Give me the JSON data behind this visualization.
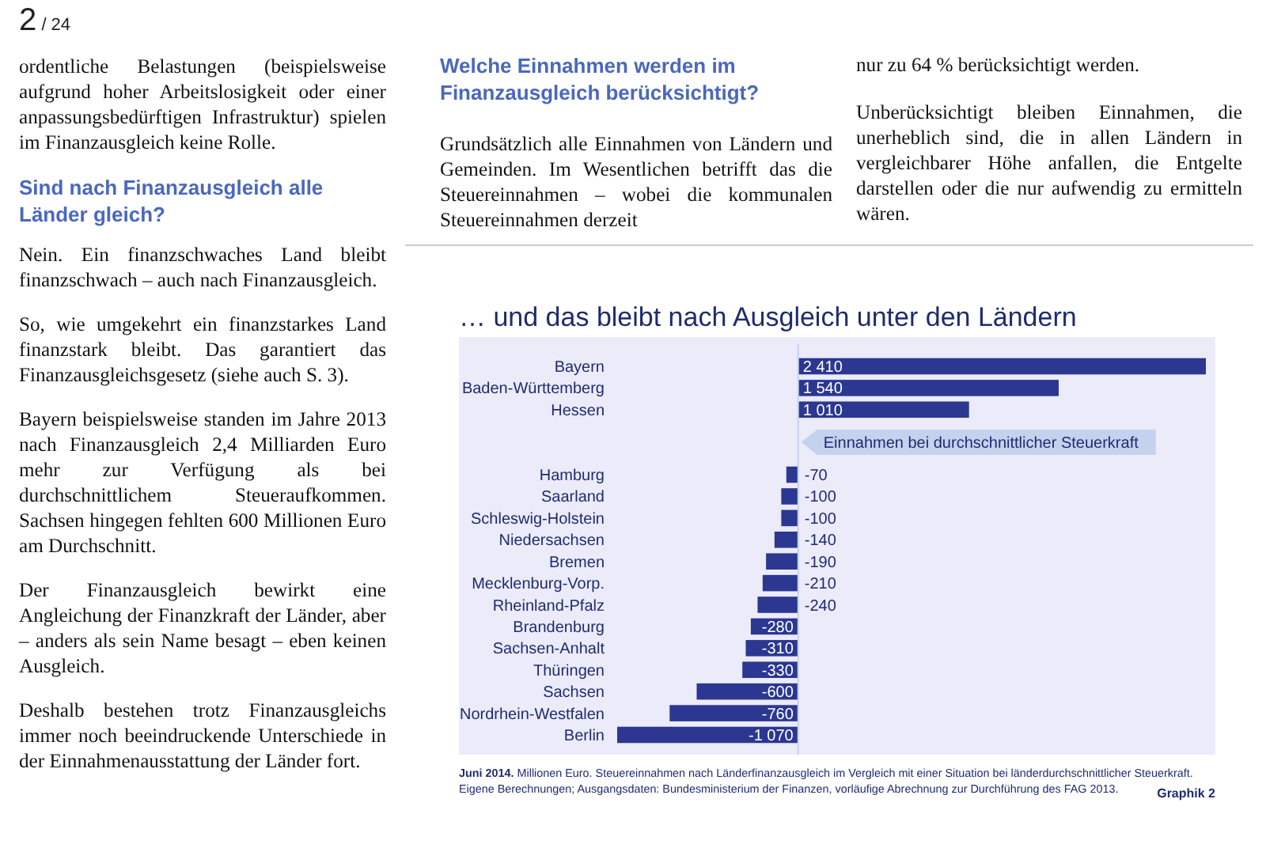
{
  "chart_data": {
    "type": "bar",
    "orientation": "horizontal",
    "title": "… und das bleibt nach Ausgleich unter den Ländern",
    "categories": [
      "Bayern",
      "Baden-Württemberg",
      "Hessen",
      null,
      null,
      "Hamburg",
      "Saarland",
      "Schleswig-Holstein",
      "Niedersachsen",
      "Bremen",
      "Mecklenburg-Vorp.",
      "Rheinland-Pfalz",
      "Brandenburg",
      "Sachsen-Anhalt",
      "Thüringen",
      "Sachsen",
      "Nordrhein-Westfalen",
      "Berlin"
    ],
    "values": [
      2410,
      1540,
      1010,
      null,
      null,
      -70,
      -100,
      -100,
      -140,
      -190,
      -210,
      -240,
      -280,
      -310,
      -330,
      -600,
      -760,
      -1070
    ],
    "value_labels": [
      "2 410",
      "1 540",
      "1 010",
      null,
      null,
      "-70",
      "-100",
      "-100",
      "-140",
      "-190",
      "-210",
      "-240",
      "-280",
      "-310",
      "-330",
      "-600",
      "-760",
      "-1 070"
    ],
    "data_labels": true,
    "color": "#2b3791",
    "ref_lines": [
      {
        "axis": "x",
        "value": 0,
        "label": "Einnahmen bei durchschnittlicher Steuerkraft",
        "color": "#c5d2ee"
      }
    ],
    "annotations": [
      "2",
      "/ 24",
      "ordentliche Belastungen (beispielsweise aufgrund hoher Arbeitslosigkeit oder einer anpassungsbedürftigen Infrastruktur) spielen im Finanzausgleich keine Rolle.",
      "Sind nach Finanzausgleich alle Länder gleich?",
      "Nein. Ein finanzschwaches Land bleibt finanzschwach – auch nach Finanzausgleich.",
      "So, wie umgekehrt ein finanzstarkes Land finanzstark bleibt. Das garantiert das Finanzausgleichsgesetz (siehe auch S. 3).",
      "Bayern beispielsweise standen im Jahre 2013 nach Finanzausgleich 2,4 Milliarden Euro mehr zur Verfügung als bei durchschnittlichem Steueraufkommen. Sachsen hingegen fehlten 600 Millionen Euro am Durchschnitt.",
      "Der Finanzausgleich bewirkt eine Angleichung der Finanzkraft der Länder, aber – anders als sein Name besagt – eben keinen Ausgleich.",
      "Deshalb bestehen trotz Finanzausgleichs immer noch beeindruckende Unterschiede in der Einnahmenausstattung der Länder fort.",
      "Welche Einnahmen werden im Finanzausgleich berücksichtigt?",
      "Grundsätzlich alle Einnahmen von Ländern und Gemeinden. Im Wesentlichen betrifft das die Steuereinnahmen – wobei die kommunalen Steuereinnahmen derzeit",
      "nur zu 64 % berücksichtigt werden.",
      "Unberücksichtigt bleiben Einnahmen, die unerheblich sind, die in allen Ländern in vergleichbarer Höhe anfallen, die Entgelte darstellen oder die nur aufwendig zu ermitteln wären.",
      "Juni 2014.",
      "Millionen Euro. Steuereinnahmen nach Länderfinanzausgleich im Vergleich mit einer Situation bei länderdurchschnittlicher Steuerkraft.",
      "Eigene Berechnungen; Ausgangsdaten: Bundesministerium der Finanzen, vorläufige Abrechnung zur Durchführung des FAG 2013.",
      "Graphik 2"
    ]
  }
}
